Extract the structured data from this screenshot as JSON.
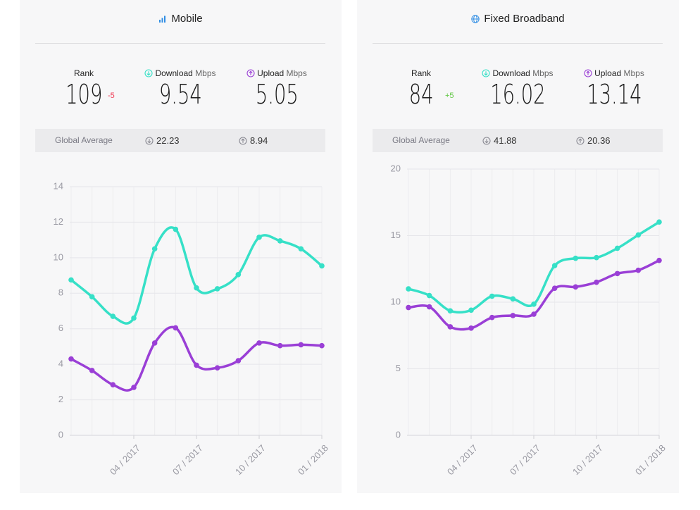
{
  "panels": [
    {
      "title": "Mobile",
      "rank_label": "Rank",
      "rank": 109,
      "rank_change": "-5",
      "download_label": "Download",
      "upload_label": "Upload",
      "unit": "Mbps",
      "download": 9.54,
      "upload": 5.05,
      "global_label": "Global Average",
      "global_download": 22.23,
      "global_upload": 8.94
    },
    {
      "title": "Fixed Broadband",
      "rank_label": "Rank",
      "rank": 84,
      "rank_change": "+5",
      "download_label": "Download",
      "upload_label": "Upload",
      "unit": "Mbps",
      "download": 16.02,
      "upload": 13.14,
      "global_label": "Global Average",
      "global_download": 41.88,
      "global_upload": 20.36
    }
  ],
  "chart_data": [
    {
      "type": "line",
      "categories": [
        null,
        null,
        null,
        "04 / 2017",
        null,
        null,
        "07 / 2017",
        null,
        null,
        "10 / 2017",
        null,
        null,
        "01 / 2018"
      ],
      "series": [
        {
          "name": "Download",
          "color": "#36e0c7",
          "values": [
            8.75,
            7.8,
            6.7,
            6.6,
            10.5,
            11.6,
            8.3,
            8.25,
            9.05,
            11.15,
            10.95,
            10.5,
            9.54
          ]
        },
        {
          "name": "Upload",
          "color": "#9a3fd6",
          "values": [
            4.3,
            3.65,
            2.85,
            2.7,
            5.2,
            6.05,
            3.95,
            3.8,
            4.2,
            5.2,
            5.05,
            5.1,
            5.05
          ]
        }
      ],
      "ylim": [
        0,
        14
      ],
      "yticks": [
        0,
        2,
        4,
        6,
        8,
        10,
        12,
        14
      ],
      "grid": true
    },
    {
      "type": "line",
      "categories": [
        null,
        null,
        null,
        "04 / 2017",
        null,
        null,
        "07 / 2017",
        null,
        null,
        "10 / 2017",
        null,
        null,
        "01 / 2018"
      ],
      "series": [
        {
          "name": "Download",
          "color": "#36e0c7",
          "values": [
            11.0,
            10.5,
            9.35,
            9.4,
            10.45,
            10.25,
            9.85,
            12.75,
            13.3,
            13.35,
            14.05,
            15.05,
            16.02
          ]
        },
        {
          "name": "Upload",
          "color": "#9a3fd6",
          "values": [
            9.6,
            9.65,
            8.15,
            8.05,
            8.85,
            9.0,
            9.1,
            11.05,
            11.15,
            11.5,
            12.15,
            12.4,
            13.14
          ]
        }
      ],
      "ylim": [
        0,
        20
      ],
      "yticks": [
        0,
        5,
        10,
        15,
        20
      ],
      "grid": true
    }
  ]
}
